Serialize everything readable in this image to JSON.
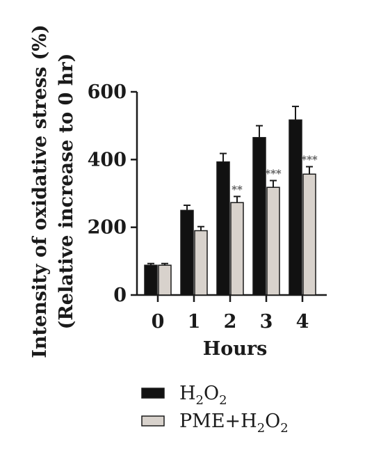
{
  "chart_data": {
    "type": "bar",
    "title": "",
    "xlabel": "Hours",
    "ylabel": "Intensity of oxidative stress (%)",
    "ylabel2": "(Relative increase to 0 hr)",
    "categories": [
      "0",
      "1",
      "2",
      "3",
      "4"
    ],
    "ylim": [
      0,
      600
    ],
    "yticks": [
      0,
      200,
      400,
      600
    ],
    "legend_position": "bottom",
    "series": [
      {
        "name": "H2O2",
        "name_base": "H",
        "name_sub1": "2",
        "name_mid": "O",
        "name_sub2": "2",
        "name_tail": "",
        "color": "#111111",
        "values": [
          88,
          250,
          393,
          465,
          517
        ],
        "errors": [
          5,
          15,
          25,
          35,
          40
        ]
      },
      {
        "name": "PME+H2O2",
        "name_base": "PME+H",
        "name_sub1": "2",
        "name_mid": "O",
        "name_sub2": "2",
        "name_tail": "",
        "color": "#d8d2cc",
        "values": [
          88,
          190,
          273,
          318,
          357
        ],
        "errors": [
          5,
          12,
          18,
          20,
          22
        ],
        "significance": [
          "",
          "",
          "**",
          "***",
          "***"
        ]
      }
    ]
  }
}
